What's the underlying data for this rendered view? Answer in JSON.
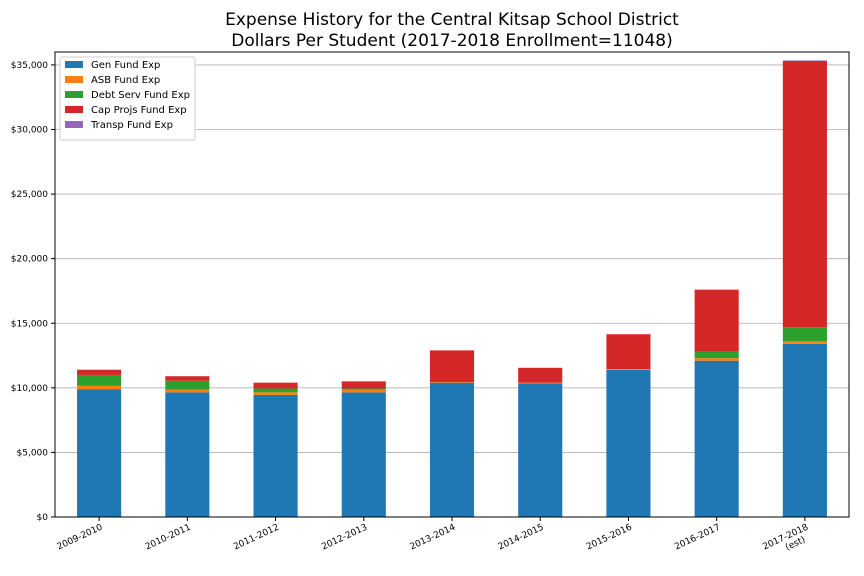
{
  "chart_data": {
    "type": "bar",
    "stacked": true,
    "title": [
      "Expense History for the Central Kitsap School District",
      "Dollars Per Student (2017-2018 Enrollment=11048)"
    ],
    "xlabel": "",
    "ylabel": "",
    "categories": [
      "2009-2010",
      "2010-2011",
      "2011-2012",
      "2012-2013",
      "2013-2014",
      "2014-2015",
      "2015-2016",
      "2016-2017",
      "2017-2018\n(est)"
    ],
    "category_lines": [
      [
        "2009-2010"
      ],
      [
        "2010-2011"
      ],
      [
        "2011-2012"
      ],
      [
        "2012-2013"
      ],
      [
        "2013-2014"
      ],
      [
        "2014-2015"
      ],
      [
        "2015-2016"
      ],
      [
        "2016-2017"
      ],
      [
        "2017-2018",
        "(est)"
      ]
    ],
    "ylim": [
      0,
      36000
    ],
    "yticks": [
      0,
      5000,
      10000,
      15000,
      20000,
      25000,
      30000,
      35000
    ],
    "ytick_labels": [
      "$0",
      "$5,000",
      "$10,000",
      "$15,000",
      "$20,000",
      "$25,000",
      "$30,000",
      "$35,000"
    ],
    "grid": "horizontal",
    "legend_position": "top-left",
    "series": [
      {
        "name": "Gen Fund Exp",
        "color": "#1f77b4",
        "values": [
          9900,
          9650,
          9450,
          9650,
          10400,
          10350,
          11400,
          12100,
          13400
        ]
      },
      {
        "name": "ASB Fund Exp",
        "color": "#ff7f0e",
        "values": [
          250,
          200,
          200,
          200,
          50,
          50,
          50,
          200,
          200
        ]
      },
      {
        "name": "Debt Serv Fund Exp",
        "color": "#2ca02c",
        "values": [
          850,
          700,
          300,
          100,
          0,
          0,
          0,
          500,
          1100
        ]
      },
      {
        "name": "Cap Projs Fund Exp",
        "color": "#d62728",
        "values": [
          400,
          350,
          450,
          550,
          2450,
          1150,
          2700,
          4800,
          20600
        ]
      },
      {
        "name": "Transp Fund Exp",
        "color": "#9467bd",
        "values": [
          0,
          0,
          0,
          0,
          0,
          0,
          0,
          0,
          50
        ]
      }
    ]
  }
}
